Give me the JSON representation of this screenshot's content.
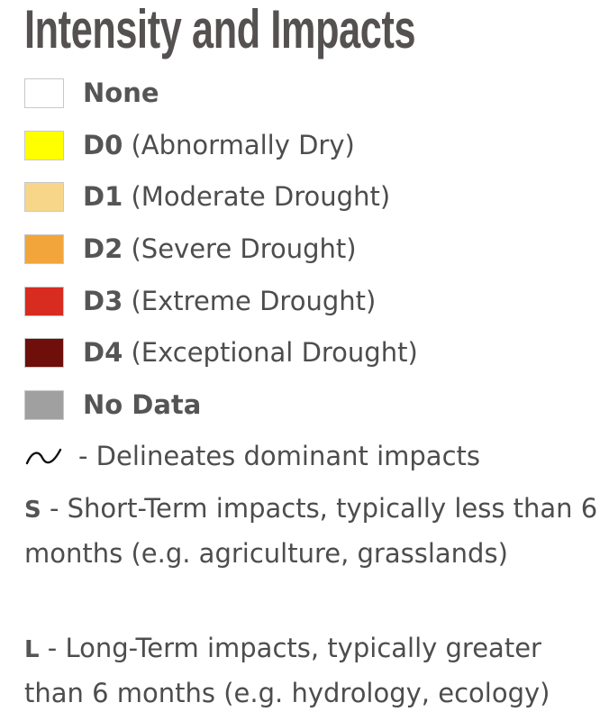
{
  "title": "Intensity and Impacts",
  "categories": [
    {
      "code": "",
      "name": "None",
      "color": "#ffffff"
    },
    {
      "code": "D0",
      "name": "(Abnormally Dry)",
      "color": "#ffff00"
    },
    {
      "code": "D1",
      "name": "(Moderate Drought)",
      "color": "#f7d68a"
    },
    {
      "code": "D2",
      "name": "(Severe Drought)",
      "color": "#f2a53a"
    },
    {
      "code": "D3",
      "name": "(Extreme Drought)",
      "color": "#d72c1f"
    },
    {
      "code": "D4",
      "name": "(Exceptional Drought)",
      "color": "#6e0f0c"
    },
    {
      "code": "",
      "name": "No Data",
      "color": "#a0a0a0"
    }
  ],
  "impact_line": {
    "icon": "wave-line-icon",
    "text": "- Delineates dominant impacts"
  },
  "short_term": {
    "letter": "S",
    "text": " - Short-Term impacts, typically less than 6 months (e.g. agriculture, grasslands)"
  },
  "long_term": {
    "letter": "L",
    "text": " - Long-Term impacts, typically greater than 6 months (e.g. hydrology, ecology)"
  }
}
